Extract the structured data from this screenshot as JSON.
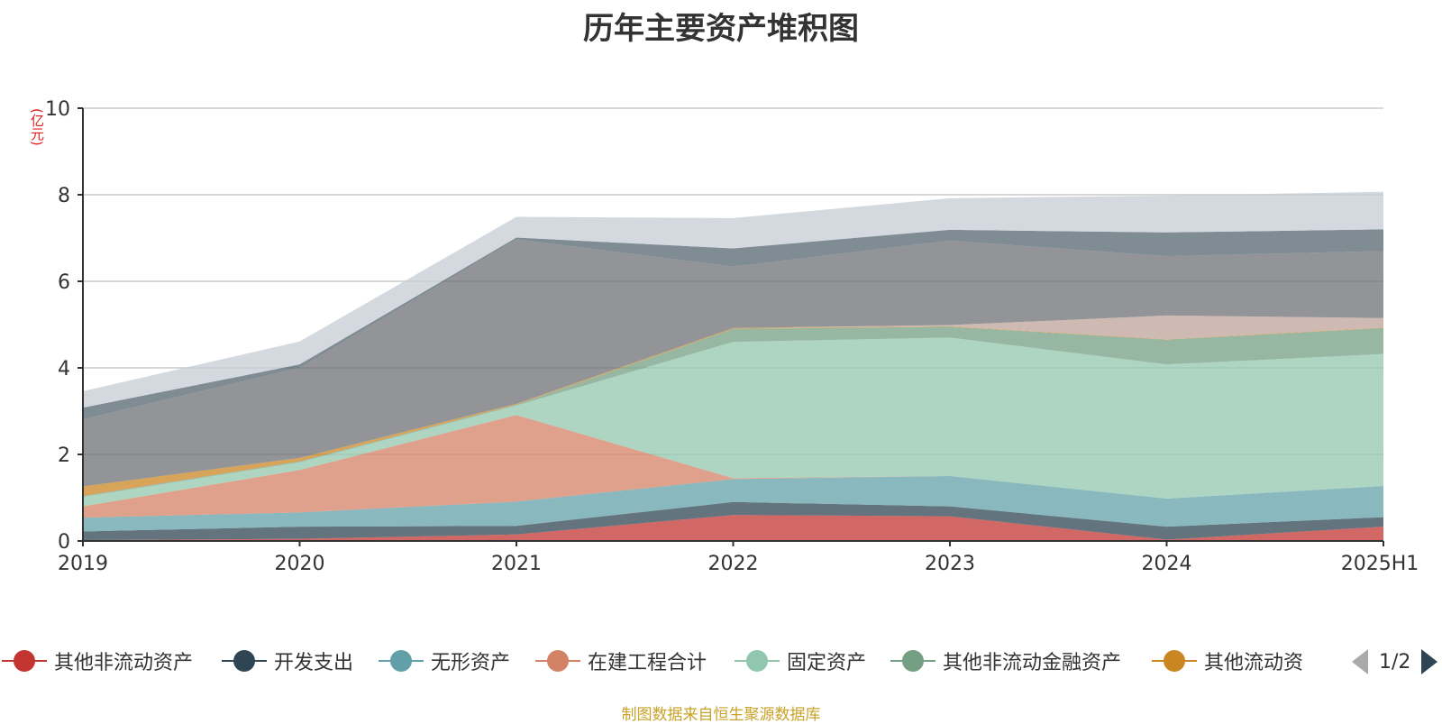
{
  "chart_data": {
    "type": "area",
    "stacked": true,
    "title": "历年主要资产堆积图",
    "ylabel": "(亿元)",
    "xlabel": "",
    "ylim": [
      0,
      10
    ],
    "yticks": [
      "0",
      "2",
      "4",
      "6",
      "8",
      "10"
    ],
    "categories": [
      "2019",
      "2020",
      "2021",
      "2022",
      "2023",
      "2024",
      "2025H1"
    ],
    "grid": true,
    "legend_position": "bottom",
    "series": [
      {
        "name": "其他非流动资产",
        "color": "#c23531",
        "values": [
          0.02,
          0.05,
          0.15,
          0.6,
          0.57,
          0.03,
          0.33
        ]
      },
      {
        "name": "开发支出",
        "color": "#2f4554",
        "values": [
          0.2,
          0.28,
          0.2,
          0.3,
          0.23,
          0.3,
          0.22
        ]
      },
      {
        "name": "无形资产",
        "color": "#61a0a8",
        "values": [
          0.32,
          0.33,
          0.56,
          0.53,
          0.7,
          0.65,
          0.72
        ]
      },
      {
        "name": "在建工程合计",
        "color": "#d48265",
        "values": [
          0.26,
          0.98,
          2.0,
          0.02,
          0.0,
          0.0,
          0.0
        ]
      },
      {
        "name": "固定资产",
        "color": "#91c7ae",
        "values": [
          0.22,
          0.18,
          0.22,
          3.15,
          3.2,
          3.1,
          3.05
        ]
      },
      {
        "name": "其他非流动金融资产",
        "color": "#749f83",
        "values": [
          0.02,
          0.02,
          0.02,
          0.3,
          0.25,
          0.57,
          0.6
        ]
      },
      {
        "name": "其他流动资",
        "color": "#ca8622",
        "values": [
          0.22,
          0.08,
          0.02,
          0.02,
          0.01,
          0.01,
          0.01
        ]
      },
      {
        "name": "",
        "color": "#bda29a",
        "values": [
          0.0,
          0.0,
          0.0,
          0.0,
          0.03,
          0.55,
          0.22
        ]
      },
      {
        "name": "",
        "color": "#6e7074",
        "values": [
          1.55,
          2.08,
          3.8,
          1.42,
          1.95,
          1.37,
          1.55
        ]
      },
      {
        "name": "",
        "color": "#546570",
        "values": [
          0.27,
          0.08,
          0.04,
          0.42,
          0.25,
          0.55,
          0.5
        ]
      },
      {
        "name": "",
        "color": "#c4ccd3",
        "values": [
          0.38,
          0.53,
          0.48,
          0.7,
          0.73,
          0.85,
          0.87
        ]
      }
    ]
  },
  "legend": {
    "items": [
      {
        "label": "其他非流动资产",
        "color": "#c23531"
      },
      {
        "label": "开发支出",
        "color": "#2f4554"
      },
      {
        "label": "无形资产",
        "color": "#61a0a8"
      },
      {
        "label": "在建工程合计",
        "color": "#d48265"
      },
      {
        "label": "固定资产",
        "color": "#91c7ae"
      },
      {
        "label": "其他非流动金融资产",
        "color": "#749f83"
      },
      {
        "label": "其他流动资",
        "color": "#ca8622"
      }
    ],
    "page_indicator": "1/2"
  },
  "source_note": "制图数据来自恒生聚源数据库"
}
